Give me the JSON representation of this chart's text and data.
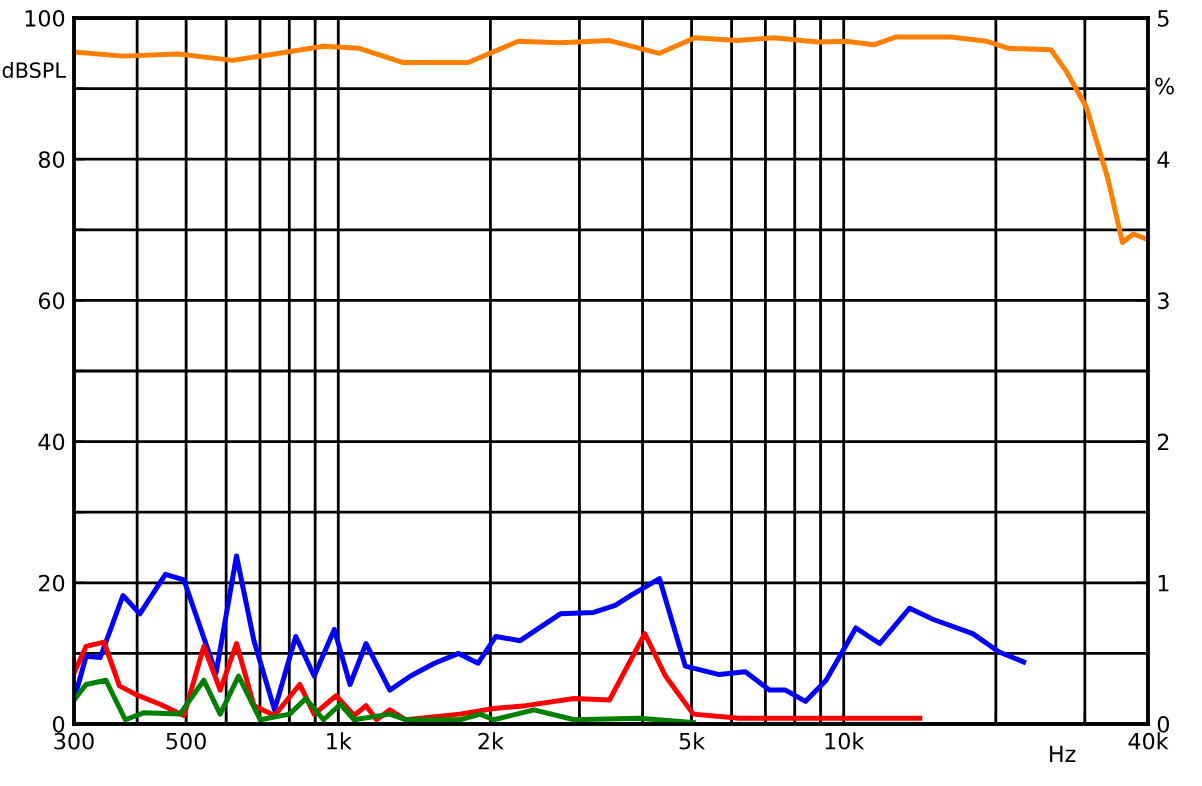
{
  "chart_data": {
    "type": "line",
    "ylabel": "dBSPL",
    "y2label": "%",
    "xlabel": "Hz",
    "log": "x",
    "grid": true,
    "xlim": [
      300,
      40000
    ],
    "xticks": [
      300,
      {
        "value": 400,
        "label": null
      },
      500,
      {
        "value": 600,
        "label": null
      },
      {
        "value": 700,
        "label": null
      },
      {
        "value": 800,
        "label": null
      },
      {
        "value": 900,
        "label": null
      },
      {
        "value": 1000,
        "label": "1k"
      },
      {
        "value": 2000,
        "label": "2k"
      },
      {
        "value": 3000,
        "label": null
      },
      {
        "value": 4000,
        "label": null
      },
      {
        "value": 5000,
        "label": "5k"
      },
      {
        "value": 6000,
        "label": null
      },
      {
        "value": 7000,
        "label": null
      },
      {
        "value": 8000,
        "label": null
      },
      {
        "value": 9000,
        "label": null
      },
      {
        "value": 10000,
        "label": "10k"
      },
      {
        "value": 20000,
        "label": null
      },
      {
        "value": 30000,
        "label": null
      },
      {
        "value": 40000,
        "label": "40k"
      }
    ],
    "ylim": [
      0,
      100
    ],
    "yticks": [
      0,
      {
        "value": 10,
        "label": null
      },
      20,
      {
        "value": 30,
        "label": null
      },
      40,
      {
        "value": 50,
        "label": null
      },
      60,
      {
        "value": 70,
        "label": null
      },
      80,
      {
        "value": 90,
        "label": null
      },
      100
    ],
    "y2lim": [
      0,
      5
    ],
    "y2ticks": [
      0,
      1,
      2,
      3,
      4,
      5
    ],
    "series": [
      {
        "color": "#ff8000",
        "x": [
          300,
          375,
          482,
          618,
          748,
          935,
          1100,
          1340,
          1808,
          2270,
          2750,
          3440,
          4320,
          5080,
          6150,
          7270,
          8880,
          10100,
          11460,
          12660,
          16300,
          19200,
          21200,
          25700,
          27600,
          30200,
          33300,
          35600,
          37400,
          40000
        ],
        "values": [
          95.2,
          94.6,
          94.9,
          94.0,
          94.9,
          96.0,
          95.7,
          93.7,
          93.7,
          96.7,
          96.5,
          96.8,
          95.0,
          97.2,
          96.8,
          97.2,
          96.6,
          96.7,
          96.2,
          97.3,
          97.3,
          96.7,
          95.7,
          95.5,
          92.4,
          87.4,
          77.3,
          68.2,
          69.4,
          68.6
        ]
      },
      {
        "color": "#0000ff",
        "axis": "y2",
        "x": [
          300,
          317,
          338,
          375,
          405,
          455,
          495,
          573,
          629,
          681,
          748,
          824,
          896,
          982,
          1055,
          1135,
          1265,
          1390,
          1550,
          1730,
          1890,
          2050,
          2290,
          2750,
          3200,
          3530,
          3830,
          4320,
          4860,
          5670,
          6390,
          7130,
          7670,
          8400,
          9230,
          10570,
          11780,
          13500,
          15050,
          18000,
          20300,
          22700
        ],
        "values": [
          0.17,
          0.48,
          0.47,
          0.91,
          0.78,
          1.06,
          1.02,
          0.36,
          1.19,
          0.59,
          0.1,
          0.62,
          0.34,
          0.67,
          0.28,
          0.57,
          0.24,
          0.34,
          0.43,
          0.5,
          0.43,
          0.62,
          0.59,
          0.78,
          0.79,
          0.84,
          0.92,
          1.03,
          0.41,
          0.35,
          0.37,
          0.24,
          0.24,
          0.16,
          0.31,
          0.68,
          0.57,
          0.82,
          0.74,
          0.64,
          0.51,
          0.44
        ]
      },
      {
        "color": "#ff0000",
        "axis": "y2",
        "x": [
          300,
          317,
          344,
          369,
          397,
          444,
          495,
          542,
          584,
          629,
          681,
          748,
          839,
          896,
          990,
          1075,
          1135,
          1190,
          1265,
          1360,
          1740,
          2030,
          2350,
          2930,
          3440,
          4040,
          4440,
          5040,
          6210,
          9830,
          14140
        ],
        "values": [
          0.36,
          0.55,
          0.58,
          0.27,
          0.21,
          0.14,
          0.06,
          0.55,
          0.24,
          0.57,
          0.13,
          0.06,
          0.28,
          0.07,
          0.2,
          0.06,
          0.13,
          0.03,
          0.1,
          0.03,
          0.07,
          0.11,
          0.13,
          0.18,
          0.17,
          0.64,
          0.34,
          0.07,
          0.04,
          0.04,
          0.04
        ]
      },
      {
        "color": "#008000",
        "axis": "y2",
        "x": [
          300,
          317,
          347,
          379,
          413,
          486,
          542,
          584,
          635,
          701,
          801,
          862,
          935,
          1010,
          1075,
          1265,
          1360,
          1740,
          1910,
          2030,
          2440,
          2930,
          3940,
          5040
        ],
        "values": [
          0.17,
          0.28,
          0.31,
          0.03,
          0.08,
          0.07,
          0.31,
          0.07,
          0.34,
          0.03,
          0.07,
          0.18,
          0.03,
          0.14,
          0.03,
          0.07,
          0.03,
          0.03,
          0.07,
          0.03,
          0.1,
          0.03,
          0.04,
          0.01
        ]
      }
    ]
  }
}
